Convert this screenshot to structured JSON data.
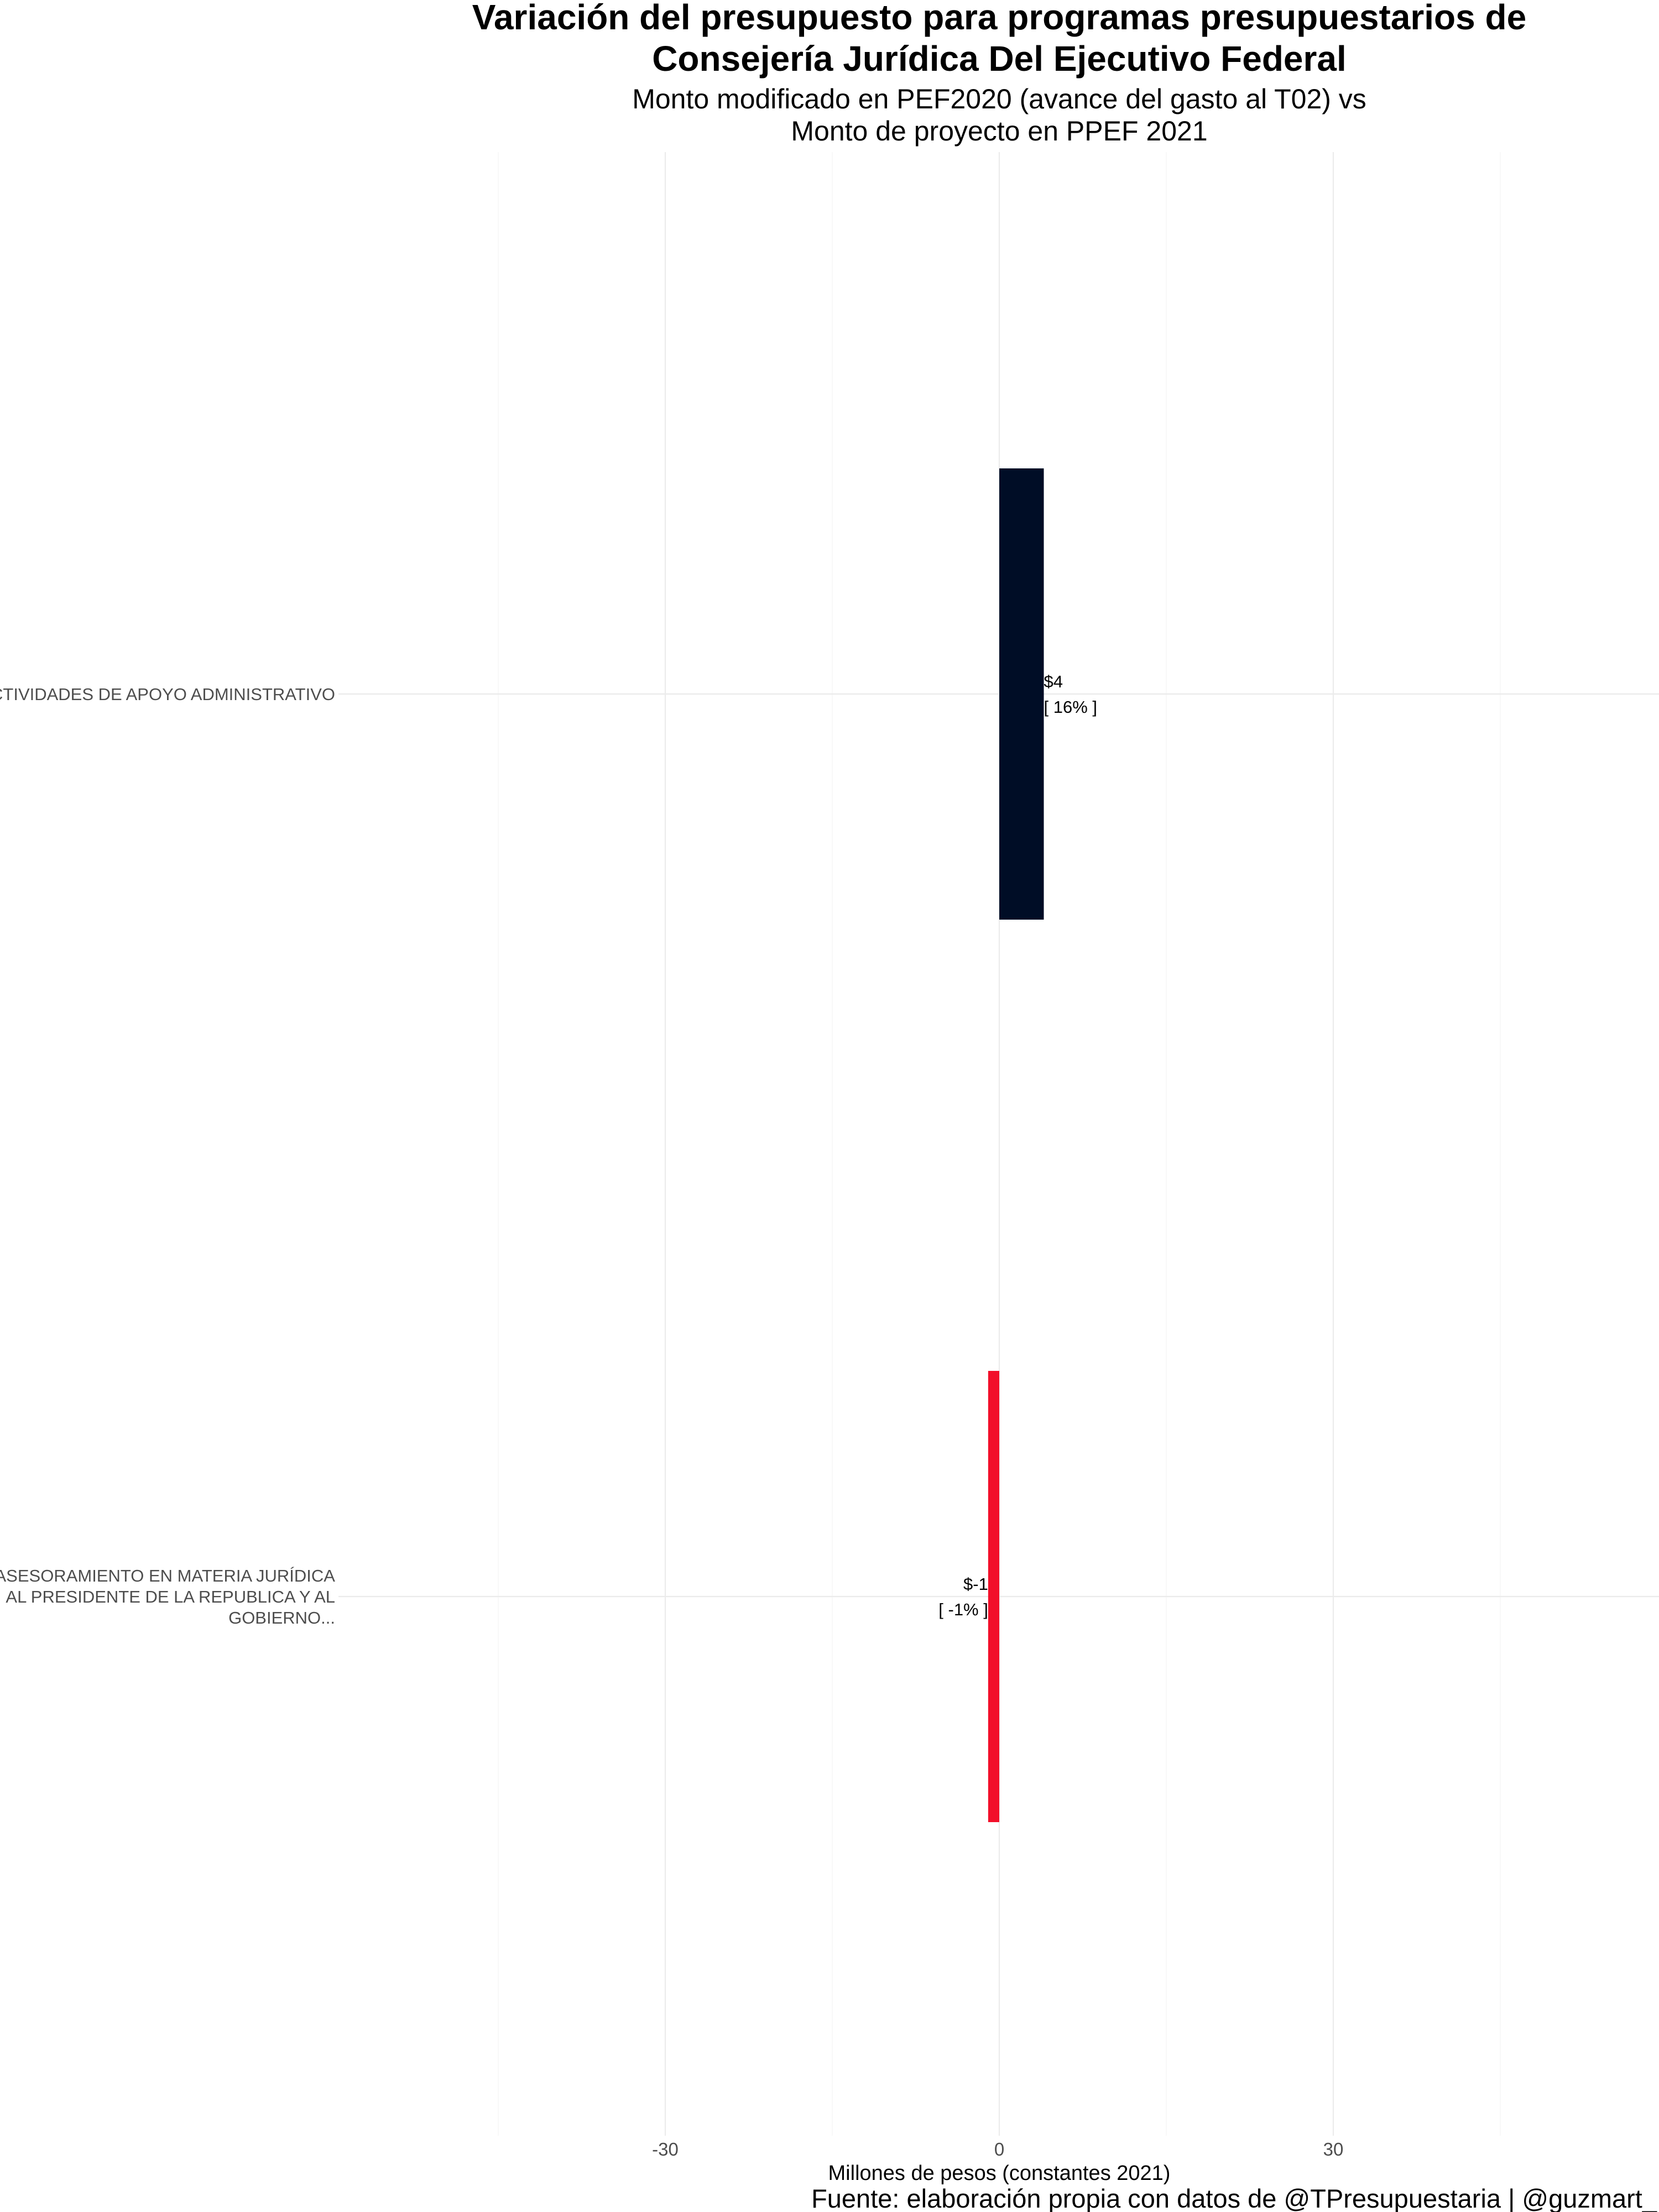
{
  "chart_data": {
    "type": "bar",
    "orientation": "horizontal",
    "title": "Variación del presupuesto para programas presupuestarios de Consejería Jurídica Del Ejecutivo Federal",
    "title_lines": [
      "Variación del presupuesto para programas presupuestarios de",
      "Consejería Jurídica Del Ejecutivo Federal"
    ],
    "subtitle": "Monto modificado en PEF2020 (avance del gasto al T02) vs Monto de proyecto en PPEF 2021",
    "subtitle_lines": [
      "Monto modificado en PEF2020 (avance del gasto al T02) vs",
      "Monto de proyecto en PPEF 2021"
    ],
    "xlabel": "Millones de pesos (constantes 2021)",
    "ylabel": "",
    "caption": "Fuente: elaboración propia con datos de @TPresupuestaria | @guzmart_",
    "xlim": [
      -45,
      60
    ],
    "x_ticks": [
      -30,
      0,
      30
    ],
    "x_tick_labels": [
      "-30",
      "0",
      "30"
    ],
    "grid": true,
    "legend": "none",
    "categories": [
      {
        "label_lines": [
          "ACTIVIDADES DE APOYO ADMINISTRATIVO"
        ],
        "value": 4,
        "percent": 16,
        "value_label": "$4",
        "percent_label": "[ 16% ]",
        "color": "#000d26"
      },
      {
        "label_lines": [
          "ASESORAMIENTO EN MATERIA JURÍDICA",
          "AL PRESIDENTE DE LA REPUBLICA Y AL",
          "GOBIERNO..."
        ],
        "value": -1,
        "percent": -1,
        "value_label": "$-1",
        "percent_label": "[ -1% ]",
        "color": "#f2102a"
      }
    ]
  }
}
